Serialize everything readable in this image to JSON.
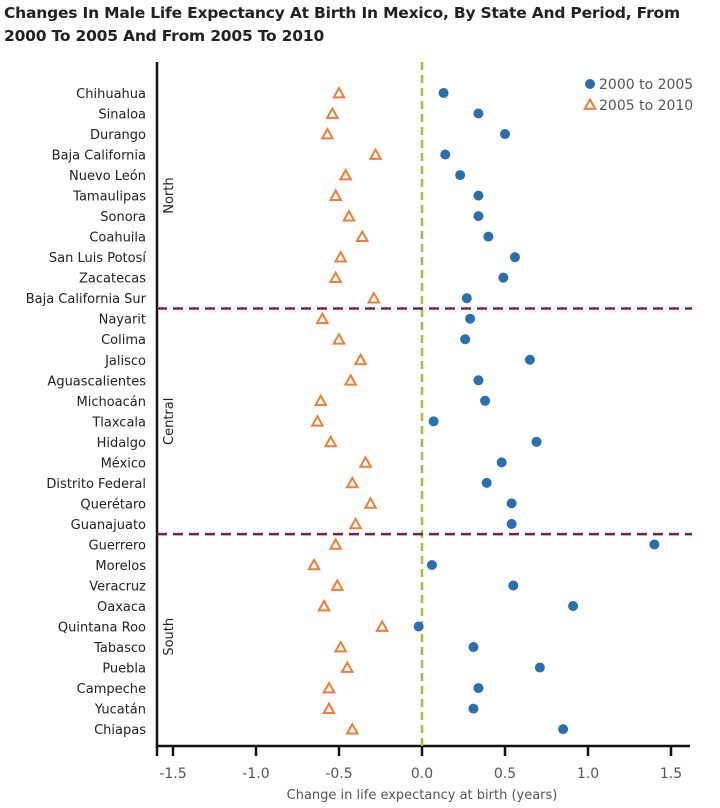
{
  "chart_data": {
    "type": "scatter",
    "title": "Changes In Male Life Expectancy At Birth In Mexico, By State And Period, From 2000 To 2005 And From 2005 To 2010",
    "xlabel": "Change in life expectancy at birth (years)",
    "xlim": [
      -1.6,
      1.6
    ],
    "xticks": [
      "-1.5",
      "-1.0",
      "-0.5",
      "0.0",
      "0.5",
      "1.0",
      "1.5"
    ],
    "xtick_values": [
      -1.5,
      -1.0,
      -0.5,
      0.0,
      0.5,
      1.0,
      1.5
    ],
    "reference_line": 0,
    "grid": false,
    "legend_position": "top-right",
    "categories": [
      "Chihuahua",
      "Sinaloa",
      "Durango",
      "Baja California",
      "Nuevo León",
      "Tamaulipas",
      "Sonora",
      "Coahuila",
      "San Luis Potosí",
      "Zacatecas",
      "Baja California Sur",
      "Nayarit",
      "Colima",
      "Jalisco",
      "Aguascalientes",
      "Michoacán",
      "Tlaxcala",
      "Hidalgo",
      "México",
      "Distrito Federal",
      "Querétaro",
      "Guanajuato",
      "Guerrero",
      "Morelos",
      "Veracruz",
      "Oaxaca",
      "Quintana Roo",
      "Tabasco",
      "Puebla",
      "Campeche",
      "Yucatán",
      "Chiapas"
    ],
    "regions": [
      {
        "name": "North",
        "count": 11
      },
      {
        "name": "Central",
        "count": 11
      },
      {
        "name": "South",
        "count": 10
      }
    ],
    "series": [
      {
        "name": "2000 to 2005",
        "marker": "circle",
        "color": "#2a6fb0",
        "values": [
          0.13,
          0.34,
          0.5,
          0.14,
          0.23,
          0.34,
          0.34,
          0.4,
          0.56,
          0.49,
          0.27,
          0.29,
          0.26,
          0.65,
          0.34,
          0.38,
          0.07,
          0.69,
          0.48,
          0.39,
          0.54,
          0.54,
          1.4,
          0.06,
          0.55,
          0.91,
          -0.02,
          0.31,
          0.71,
          0.34,
          0.31,
          0.85
        ]
      },
      {
        "name": "2005 to 2010",
        "marker": "triangle",
        "color": "#ef7d35",
        "values": [
          -0.5,
          -0.54,
          -0.57,
          -0.28,
          -0.46,
          -0.52,
          -0.44,
          -0.36,
          -0.49,
          -0.52,
          -0.29,
          -0.6,
          -0.5,
          -0.37,
          -0.43,
          -0.61,
          -0.63,
          -0.55,
          -0.34,
          -0.42,
          -0.31,
          -0.4,
          -0.52,
          -0.65,
          -0.51,
          -0.59,
          -0.24,
          -0.49,
          -0.45,
          -0.56,
          -0.56,
          -0.42
        ]
      }
    ],
    "colors": {
      "zero_line": "#9dc33b",
      "region_divider": "#7a1f4f",
      "axis": "#111111"
    }
  }
}
